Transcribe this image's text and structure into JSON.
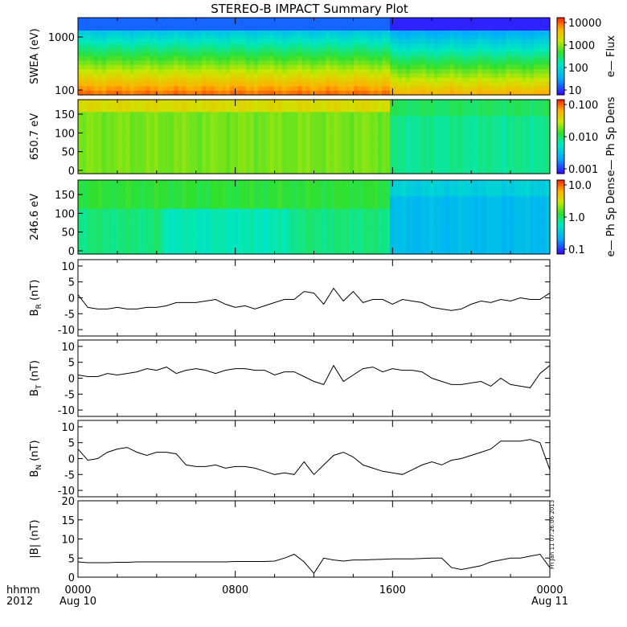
{
  "title": "STEREO-B IMPACT Summary Plot",
  "stamp": "Fri Jan 11 07:26:06 2013",
  "footer": {
    "row1_label": "hhmm",
    "row2_label": "2012",
    "time_ticks": [
      "0000",
      "0800",
      "1600",
      "0000"
    ],
    "date_ticks": [
      "Aug 10",
      "",
      "",
      "Aug 11"
    ]
  },
  "colors": {
    "line": "#000000",
    "background": "#ffffff"
  },
  "chart_data": [
    {
      "type": "heatmap",
      "ylabel": "SWEA (eV)",
      "yscale": "log",
      "yticks": [
        "1000",
        "100"
      ],
      "colorbar": {
        "label": "e— Flux",
        "scale": "log",
        "ticks": [
          "10000",
          "1000",
          "100",
          "10"
        ]
      },
      "x": [
        "0000",
        "0800",
        "1600",
        "0000"
      ]
    },
    {
      "type": "heatmap",
      "ylabel": "650.7 eV",
      "ylim": [
        0,
        180
      ],
      "yticks": [
        "0",
        "50",
        "100",
        "150"
      ],
      "colorbar": {
        "label": "e— Ph Sp Dens",
        "scale": "log",
        "ticks": [
          "0.100",
          "0.010",
          "0.001"
        ]
      },
      "x": [
        "0000",
        "0800",
        "1600",
        "0000"
      ]
    },
    {
      "type": "heatmap",
      "ylabel": "246.6 eV",
      "ylim": [
        0,
        180
      ],
      "yticks": [
        "0",
        "50",
        "100",
        "150"
      ],
      "colorbar": {
        "label": "e— Ph Sp Dens",
        "scale": "log",
        "ticks": [
          "10.0",
          "1.0",
          "0.1"
        ]
      },
      "x": [
        "0000",
        "0800",
        "1600",
        "0000"
      ]
    },
    {
      "type": "line",
      "ylabel_main": "B",
      "ylabel_sub": "R",
      "ylabel_unit": " (nT)",
      "ylim": [
        -12,
        12
      ],
      "yticks": [
        "10",
        "5",
        "0",
        "-5",
        "-10"
      ],
      "x_hours": [
        0,
        0.5,
        1,
        1.5,
        2,
        2.5,
        3,
        3.5,
        4,
        4.5,
        5,
        5.5,
        6,
        6.5,
        7,
        7.5,
        8,
        8.5,
        9,
        9.5,
        10,
        10.5,
        11,
        11.5,
        12,
        12.5,
        13,
        13.5,
        14,
        14.5,
        15,
        15.5,
        16,
        16.5,
        17,
        17.5,
        18,
        18.5,
        19,
        19.5,
        20,
        20.5,
        21,
        21.5,
        22,
        22.5,
        23,
        23.5,
        24
      ],
      "values": [
        1,
        -3,
        -3.5,
        -3.5,
        -3,
        -3.5,
        -3.5,
        -3,
        -3,
        -2.5,
        -1.5,
        -1.5,
        -1.5,
        -1,
        -0.5,
        -2,
        -3,
        -2.5,
        -3.5,
        -2.5,
        -1.5,
        -0.5,
        -0.5,
        2,
        1.5,
        -2,
        3,
        -1,
        2,
        -1.5,
        -0.5,
        -0.5,
        -2,
        -0.5,
        -1,
        -1.5,
        -3,
        -3.5,
        -4,
        -3.5,
        -2,
        -1,
        -1.5,
        -0.5,
        -1,
        0,
        -0.5,
        -0.5,
        1.5
      ]
    },
    {
      "type": "line",
      "ylabel_main": "B",
      "ylabel_sub": "T",
      "ylabel_unit": " (nT)",
      "ylim": [
        -12,
        12
      ],
      "yticks": [
        "10",
        "5",
        "0",
        "-5",
        "-10"
      ],
      "x_hours": [
        0,
        0.5,
        1,
        1.5,
        2,
        2.5,
        3,
        3.5,
        4,
        4.5,
        5,
        5.5,
        6,
        6.5,
        7,
        7.5,
        8,
        8.5,
        9,
        9.5,
        10,
        10.5,
        11,
        11.5,
        12,
        12.5,
        13,
        13.5,
        14,
        14.5,
        15,
        15.5,
        16,
        16.5,
        17,
        17.5,
        18,
        18.5,
        19,
        19.5,
        20,
        20.5,
        21,
        21.5,
        22,
        22.5,
        23,
        23.5,
        24
      ],
      "values": [
        1,
        0.5,
        0.5,
        1.5,
        1,
        1.5,
        2,
        3,
        2.5,
        3.5,
        1.5,
        2.5,
        3,
        2.5,
        1.5,
        2.5,
        3,
        3,
        2.5,
        2.5,
        1,
        2,
        2,
        0.5,
        -1,
        -2,
        4,
        -1,
        1,
        3,
        3.5,
        2,
        3,
        2.5,
        2.5,
        2,
        0,
        -1,
        -2,
        -2,
        -1.5,
        -1,
        -2.5,
        0,
        -2,
        -2.5,
        -3,
        1.5,
        4
      ]
    },
    {
      "type": "line",
      "ylabel_main": "B",
      "ylabel_sub": "N",
      "ylabel_unit": " (nT)",
      "ylim": [
        -12,
        12
      ],
      "yticks": [
        "10",
        "5",
        "0",
        "-5",
        "-10"
      ],
      "x_hours": [
        0,
        0.5,
        1,
        1.5,
        2,
        2.5,
        3,
        3.5,
        4,
        4.5,
        5,
        5.5,
        6,
        6.5,
        7,
        7.5,
        8,
        8.5,
        9,
        9.5,
        10,
        10.5,
        11,
        11.5,
        12,
        12.5,
        13,
        13.5,
        14,
        14.5,
        15,
        15.5,
        16,
        16.5,
        17,
        17.5,
        18,
        18.5,
        19,
        19.5,
        20,
        20.5,
        21,
        21.5,
        22,
        22.5,
        23,
        23.5,
        24
      ],
      "values": [
        3,
        -0.5,
        0,
        2,
        3,
        3.5,
        2,
        1,
        2,
        2,
        1.5,
        -2,
        -2.5,
        -2.5,
        -2,
        -3,
        -2.5,
        -2.5,
        -3,
        -4,
        -5,
        -4.5,
        -5,
        -1,
        -5,
        -2,
        1,
        2,
        0.5,
        -2,
        -3,
        -4,
        -4.5,
        -5,
        -3.5,
        -2,
        -1,
        -2,
        -0.5,
        0,
        1,
        2,
        3,
        5.5,
        5.5,
        5.5,
        6,
        5,
        -3.5
      ]
    },
    {
      "type": "line",
      "ylabel_main": "|B|",
      "ylabel_sub": "",
      "ylabel_unit": " (nT)",
      "ylim": [
        0,
        20
      ],
      "yticks": [
        "20",
        "15",
        "10",
        "5",
        "0"
      ],
      "x_hours": [
        0,
        0.5,
        1,
        1.5,
        2,
        2.5,
        3,
        3.5,
        4,
        4.5,
        5,
        5.5,
        6,
        6.5,
        7,
        7.5,
        8,
        8.5,
        9,
        9.5,
        10,
        10.5,
        11,
        11.5,
        12,
        12.5,
        13,
        13.5,
        14,
        14.5,
        15,
        15.5,
        16,
        16.5,
        17,
        17.5,
        18,
        18.5,
        19,
        19.5,
        20,
        20.5,
        21,
        21.5,
        22,
        22.5,
        23,
        23.5,
        24
      ],
      "values": [
        4,
        3.8,
        3.8,
        3.8,
        3.9,
        3.9,
        4,
        4,
        4,
        4,
        4,
        4,
        4,
        4,
        4,
        4,
        4.1,
        4.1,
        4.1,
        4.1,
        4.2,
        5,
        6,
        4,
        1,
        5,
        4.5,
        4.2,
        4.5,
        4.5,
        4.6,
        4.7,
        4.8,
        4.8,
        4.8,
        4.9,
        5,
        5,
        2.5,
        2,
        2.5,
        3,
        4,
        4.5,
        5,
        5,
        5.5,
        6,
        2.5
      ]
    }
  ]
}
